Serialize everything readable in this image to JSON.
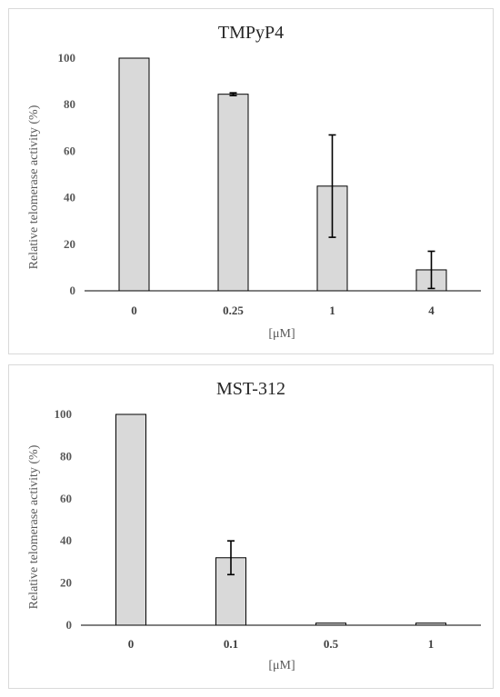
{
  "colors": {
    "bar_fill": "#d9d9d9",
    "bar_stroke": "#000000",
    "panel_border": "#d9d9d9"
  },
  "chart_data": [
    {
      "type": "bar",
      "title": "TMPyP4",
      "xlabel": "[μM]",
      "ylabel": "Relative telomerase activity (%)",
      "categories": [
        "0",
        "0.25",
        "1",
        "4"
      ],
      "values": [
        100,
        84.5,
        45,
        9
      ],
      "errors": [
        0,
        0.6,
        22,
        8
      ],
      "ylim": [
        0,
        100
      ],
      "yticks": [
        "0",
        "20",
        "40",
        "60",
        "80",
        "100"
      ],
      "grid": false,
      "legend": "none"
    },
    {
      "type": "bar",
      "title": "MST-312",
      "xlabel": "[μM]",
      "ylabel": "Relative telomerase activity (%)",
      "categories": [
        "0",
        "0.1",
        "0.5",
        "1"
      ],
      "values": [
        100,
        32,
        1,
        1
      ],
      "errors": [
        0,
        8,
        0,
        0
      ],
      "ylim": [
        0,
        100
      ],
      "yticks": [
        "0",
        "20",
        "40",
        "60",
        "80",
        "100"
      ],
      "grid": false,
      "legend": "none"
    }
  ]
}
